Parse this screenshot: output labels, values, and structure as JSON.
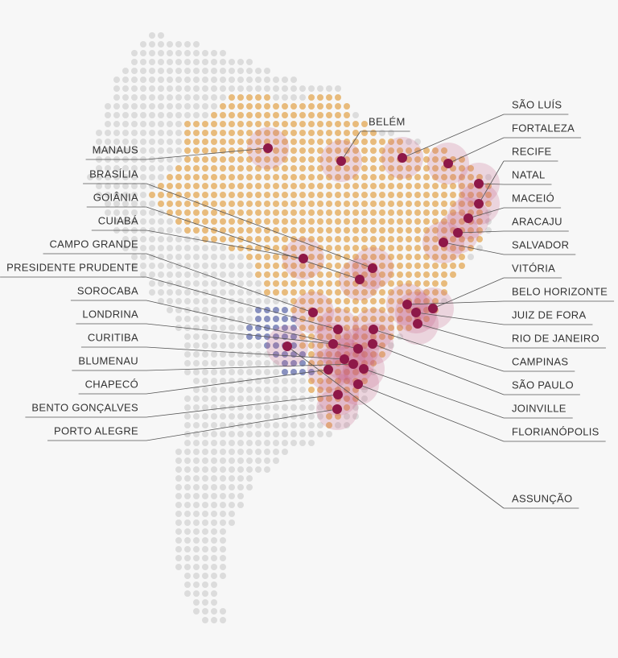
{
  "cities": [
    "MANAUS",
    "BRASÍLIA",
    "GOIÂNIA",
    "CUIABÁ",
    "CAMPO GRANDE",
    "PRESIDENTE PRUDENTE",
    "SOROCABA",
    "LONDRINA",
    "CURITIBA",
    "BLUMENAU",
    "CHAPECÓ",
    "BENTO GONÇALVES",
    "PORTO ALEGRE",
    "BELÉM",
    "SÃO LUÍS",
    "FORTALEZA",
    "RECIFE",
    "NATAL",
    "MACEIÓ",
    "ARACAJU",
    "SALVADOR",
    "VITÓRIA",
    "BELO HORIZONTE",
    "JUIZ DE FORA",
    "RIO DE JANEIRO",
    "CAMPINAS",
    "SÃO PAULO",
    "JOINVILLE",
    "FLORIANÓPOLIS",
    "ASSUNÇÃO"
  ]
}
